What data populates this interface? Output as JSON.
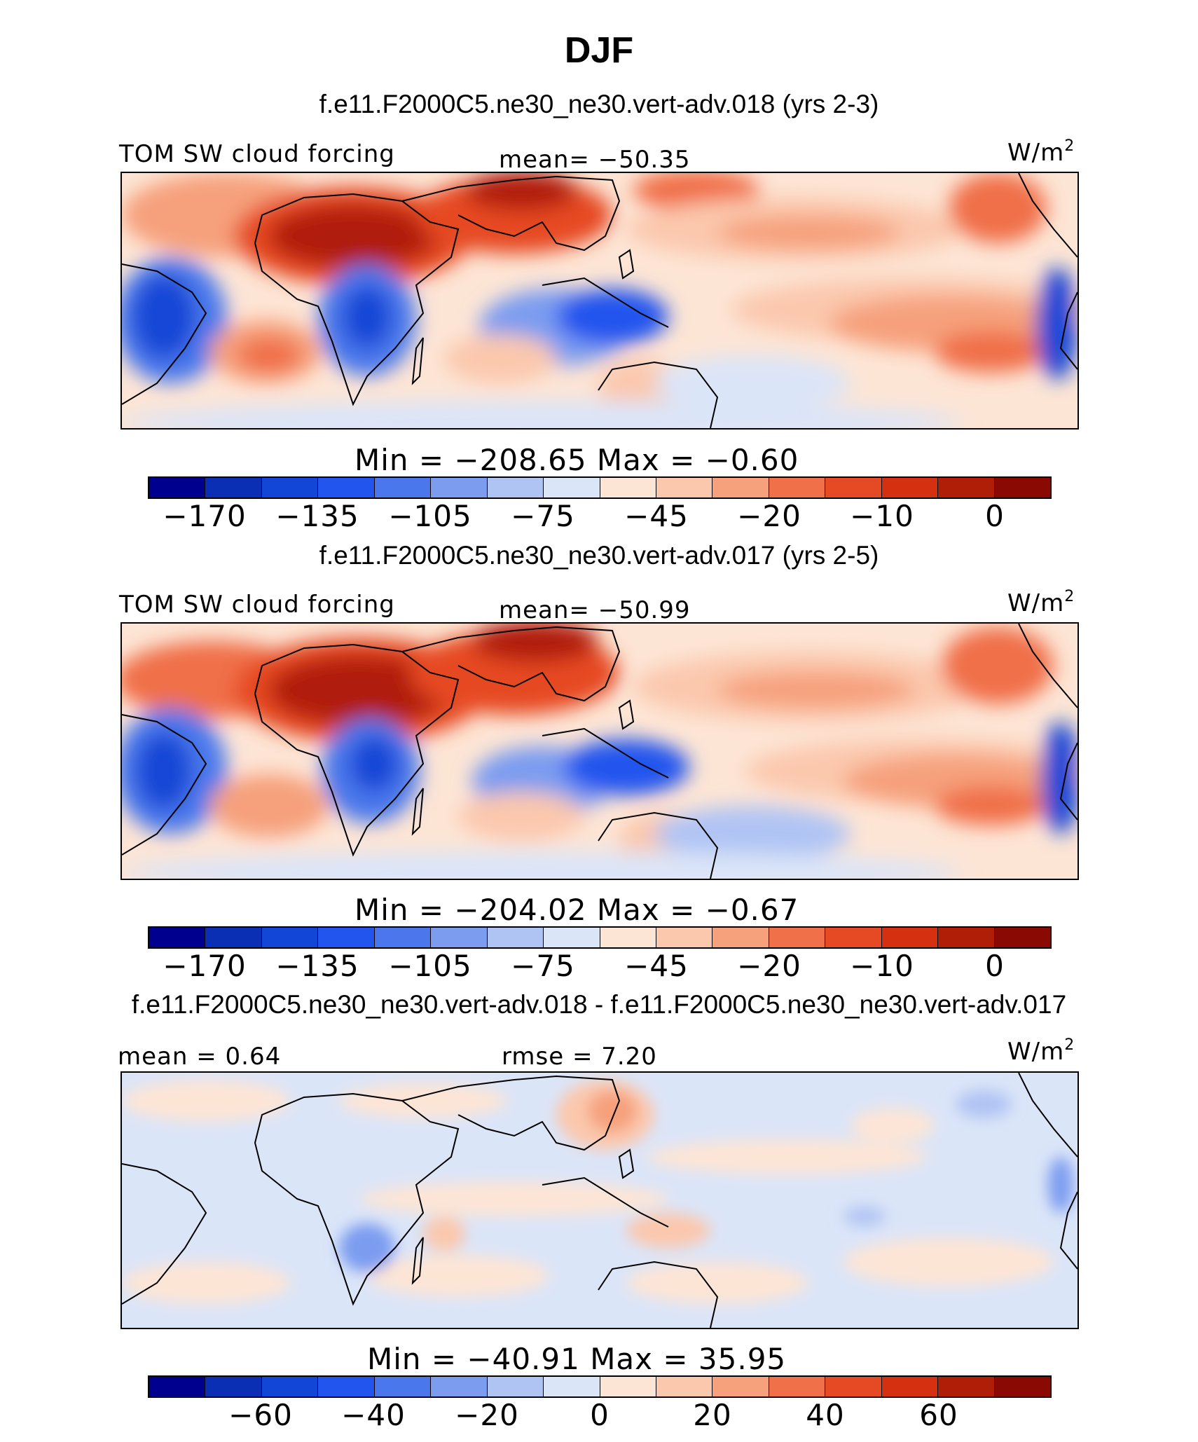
{
  "title": "DJF",
  "panels": [
    {
      "title": "f.e11.F2000C5.ne30_ne30.vert-adv.018 (yrs 2-3)",
      "left_label": "TOM SW cloud forcing",
      "center_label": "mean= −50.35",
      "units": "W/m",
      "units_sup": "2",
      "min_max": "Min = −208.65  Max =  −0.60",
      "colorbar_ticks": [
        "−170",
        "−135",
        "−105",
        "−75",
        "−45",
        "−20",
        "−10",
        "0"
      ]
    },
    {
      "title": "f.e11.F2000C5.ne30_ne30.vert-adv.017 (yrs 2-5)",
      "left_label": "TOM SW cloud forcing",
      "center_label": "mean= −50.99",
      "units": "W/m",
      "units_sup": "2",
      "min_max": "Min = −204.02  Max =  −0.67",
      "colorbar_ticks": [
        "−170",
        "−135",
        "−105",
        "−75",
        "−45",
        "−20",
        "−10",
        "0"
      ]
    },
    {
      "title": "f.e11.F2000C5.ne30_ne30.vert-adv.018 - f.e11.F2000C5.ne30_ne30.vert-adv.017",
      "left_label": "mean =   0.64",
      "center_label": "rmse =   7.20",
      "units": "W/m",
      "units_sup": "2",
      "min_max": "Min = −40.91  Max =  35.95",
      "colorbar_ticks": [
        "−60",
        "−40",
        "−20",
        "0",
        "20",
        "40",
        "60"
      ]
    }
  ],
  "colorbar_colors": [
    "#00008f",
    "#0a2fb5",
    "#1246d6",
    "#2255ee",
    "#4a78ec",
    "#7c9cf0",
    "#b0c4f4",
    "#dbe5f8",
    "#fde5d5",
    "#fbc8ad",
    "#f6a07c",
    "#f07049",
    "#e64a24",
    "#d5300f",
    "#b01e08",
    "#8a0a03"
  ],
  "chart_data": {
    "type": "heatmap",
    "season": "DJF",
    "variable": "TOM SW cloud forcing",
    "units": "W/m2",
    "panels": [
      {
        "case": "f.e11.F2000C5.ne30_ne30.vert-adv.018",
        "years": "2-3",
        "mean": -50.35,
        "min": -208.65,
        "max": -0.6,
        "contour_levels": [
          -170,
          -135,
          -105,
          -75,
          -45,
          -20,
          -10,
          0
        ]
      },
      {
        "case": "f.e11.F2000C5.ne30_ne30.vert-adv.017",
        "years": "2-5",
        "mean": -50.99,
        "min": -204.02,
        "max": -0.67,
        "contour_levels": [
          -170,
          -135,
          -105,
          -75,
          -45,
          -20,
          -10,
          0
        ]
      },
      {
        "case": "difference",
        "mean": 0.64,
        "rmse": 7.2,
        "min": -40.91,
        "max": 35.95,
        "contour_levels": [
          -60,
          -40,
          -20,
          0,
          20,
          40,
          60
        ]
      }
    ]
  }
}
